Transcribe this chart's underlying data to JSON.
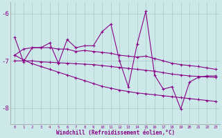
{
  "xlabel": "Windchill (Refroidissement éolien,°C)",
  "x": [
    0,
    1,
    2,
    3,
    4,
    5,
    6,
    7,
    8,
    9,
    10,
    11,
    12,
    13,
    14,
    15,
    16,
    17,
    18,
    19,
    20,
    21,
    22,
    23
  ],
  "series_jagged": [
    -6.5,
    -7.02,
    -6.72,
    -6.72,
    -6.62,
    -7.05,
    -6.55,
    -6.72,
    -6.68,
    -6.68,
    -6.38,
    -6.22,
    -7.0,
    -7.55,
    -6.65,
    -5.95,
    -7.3,
    -7.6,
    -7.55,
    -8.02,
    -7.45,
    -7.35,
    -7.32,
    -7.32
  ],
  "series_mid": [
    -6.88,
    -6.75,
    -6.72,
    -6.72,
    -6.72,
    -6.75,
    -6.75,
    -6.8,
    -6.78,
    -6.8,
    -6.82,
    -6.84,
    -6.88,
    -6.9,
    -6.92,
    -6.9,
    -6.95,
    -7.0,
    -7.05,
    -7.08,
    -7.1,
    -7.12,
    -7.15,
    -7.18
  ],
  "series_smooth": [
    -7.0,
    -7.0,
    -7.0,
    -7.02,
    -7.03,
    -7.04,
    -7.05,
    -7.06,
    -7.07,
    -7.08,
    -7.1,
    -7.12,
    -7.14,
    -7.16,
    -7.18,
    -7.2,
    -7.22,
    -7.25,
    -7.28,
    -7.3,
    -7.32,
    -7.33,
    -7.34,
    -7.35
  ],
  "series_decline": [
    -6.88,
    -6.98,
    -7.06,
    -7.12,
    -7.18,
    -7.24,
    -7.3,
    -7.36,
    -7.42,
    -7.48,
    -7.54,
    -7.58,
    -7.62,
    -7.65,
    -7.68,
    -7.7,
    -7.72,
    -7.74,
    -7.76,
    -7.78,
    -7.8,
    -7.82,
    -7.84,
    -7.86
  ],
  "bg_color": "#cce8e8",
  "line_color": "#880088",
  "grid_color": "#aacccc",
  "ylim": [
    -8.35,
    -5.75
  ],
  "yticks": [
    -8,
    -7,
    -6
  ],
  "xlim": [
    -0.5,
    23.5
  ]
}
